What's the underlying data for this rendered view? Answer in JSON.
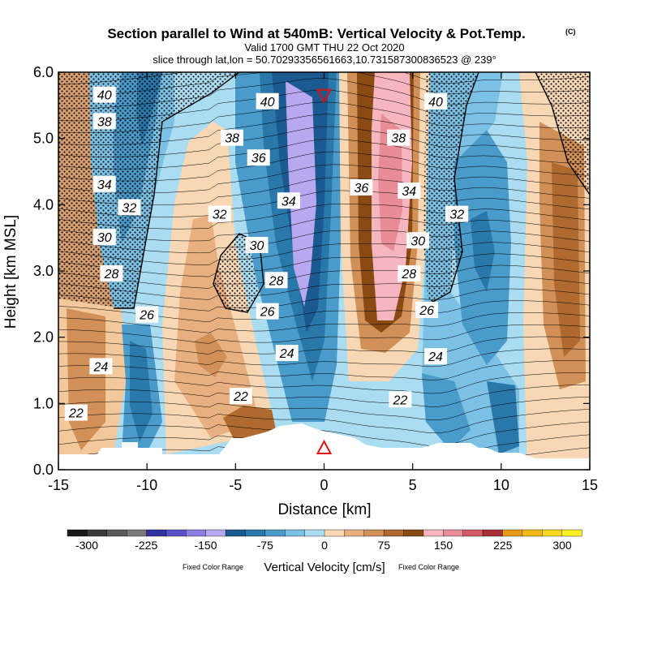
{
  "chart_data": {
    "type": "contour_cross_section",
    "title": "Section parallel to Wind at 540mB: Vertical Velocity & Pot.Temp.",
    "copyright_tag": "(C)",
    "valid_line": "Valid 1700 GMT THU 22 Oct 2020",
    "slice_line": "slice through lat,lon = 50.70293356561663,10.731587300836523 @ 239°",
    "xlabel": "Distance [km]",
    "ylabel": "Height [km MSL]",
    "xlim": [
      -15,
      15
    ],
    "ylim": [
      0,
      6
    ],
    "x_ticks": [
      -15,
      -10,
      -5,
      0,
      5,
      10,
      15
    ],
    "x_tick_labels": [
      "-15",
      "-10",
      "-5",
      "0",
      "5",
      "10",
      "15"
    ],
    "y_ticks": [
      0,
      1,
      2,
      3,
      4,
      5,
      6
    ],
    "y_tick_labels": [
      "0.0",
      "1.0",
      "2.0",
      "3.0",
      "4.0",
      "5.0",
      "6.0"
    ],
    "colorbar": {
      "label": "Vertical Velocity [cm/s]",
      "fixed_note_left": "Fixed Color Range",
      "fixed_note_right": "Fixed Color Range",
      "tick_values": [
        -300,
        -225,
        -150,
        -75,
        0,
        75,
        150,
        225,
        300
      ],
      "tick_labels": [
        "-300",
        "-225",
        "-150",
        "-75",
        "0",
        "75",
        "150",
        "225",
        "300"
      ],
      "colors": [
        "#1a1a1a",
        "#3a3a3a",
        "#5a5a5a",
        "#7a7a7a",
        "#3333a0",
        "#5a4fc8",
        "#8c7ee0",
        "#b8a8f0",
        "#1a5a90",
        "#2a78aa",
        "#4a9aca",
        "#7cc0e4",
        "#aadcf2",
        "#f8d8b4",
        "#e8b080",
        "#d09058",
        "#b06a30",
        "#8a4a14",
        "#f6b6c0",
        "#e88c98",
        "#d05a66",
        "#a8303a",
        "#e89a18",
        "#f0b818",
        "#f8d820",
        "#f8f020"
      ]
    },
    "theta_contour_labels_K": [
      {
        "value": "40",
        "x": -12.4,
        "y": 5.65
      },
      {
        "value": "38",
        "x": -12.4,
        "y": 5.25
      },
      {
        "value": "34",
        "x": -12.4,
        "y": 4.3
      },
      {
        "value": "32",
        "x": -11.0,
        "y": 3.95
      },
      {
        "value": "30",
        "x": -12.4,
        "y": 3.5
      },
      {
        "value": "28",
        "x": -12.0,
        "y": 2.95
      },
      {
        "value": "26",
        "x": -10.0,
        "y": 2.33
      },
      {
        "value": "24",
        "x": -12.6,
        "y": 1.55
      },
      {
        "value": "22",
        "x": -14.0,
        "y": 0.85
      },
      {
        "value": "38",
        "x": -5.2,
        "y": 5.0
      },
      {
        "value": "32",
        "x": -5.9,
        "y": 3.85
      },
      {
        "value": "30",
        "x": -3.8,
        "y": 3.38
      },
      {
        "value": "28",
        "x": -2.7,
        "y": 2.85
      },
      {
        "value": "26",
        "x": -3.2,
        "y": 2.38
      },
      {
        "value": "24",
        "x": -2.1,
        "y": 1.75
      },
      {
        "value": "22",
        "x": -4.7,
        "y": 1.1
      },
      {
        "value": "40",
        "x": -3.2,
        "y": 5.55
      },
      {
        "value": "36",
        "x": -3.7,
        "y": 4.7
      },
      {
        "value": "34",
        "x": -2.0,
        "y": 4.05
      },
      {
        "value": "36",
        "x": 2.1,
        "y": 4.25
      },
      {
        "value": "38",
        "x": 4.2,
        "y": 5.0
      },
      {
        "value": "34",
        "x": 4.8,
        "y": 4.2
      },
      {
        "value": "30",
        "x": 5.3,
        "y": 3.45
      },
      {
        "value": "28",
        "x": 4.8,
        "y": 2.95
      },
      {
        "value": "26",
        "x": 5.8,
        "y": 2.4
      },
      {
        "value": "24",
        "x": 6.3,
        "y": 1.7
      },
      {
        "value": "22",
        "x": 4.3,
        "y": 1.05
      },
      {
        "value": "40",
        "x": 6.3,
        "y": 5.55
      },
      {
        "value": "32",
        "x": 7.5,
        "y": 3.85
      }
    ],
    "markers": [
      {
        "type": "triangle-down",
        "color": "#e01010",
        "x": 0.0,
        "y": 5.65
      },
      {
        "type": "triangle-up",
        "color": "#e01010",
        "x": 0.0,
        "y": 0.33
      }
    ]
  }
}
